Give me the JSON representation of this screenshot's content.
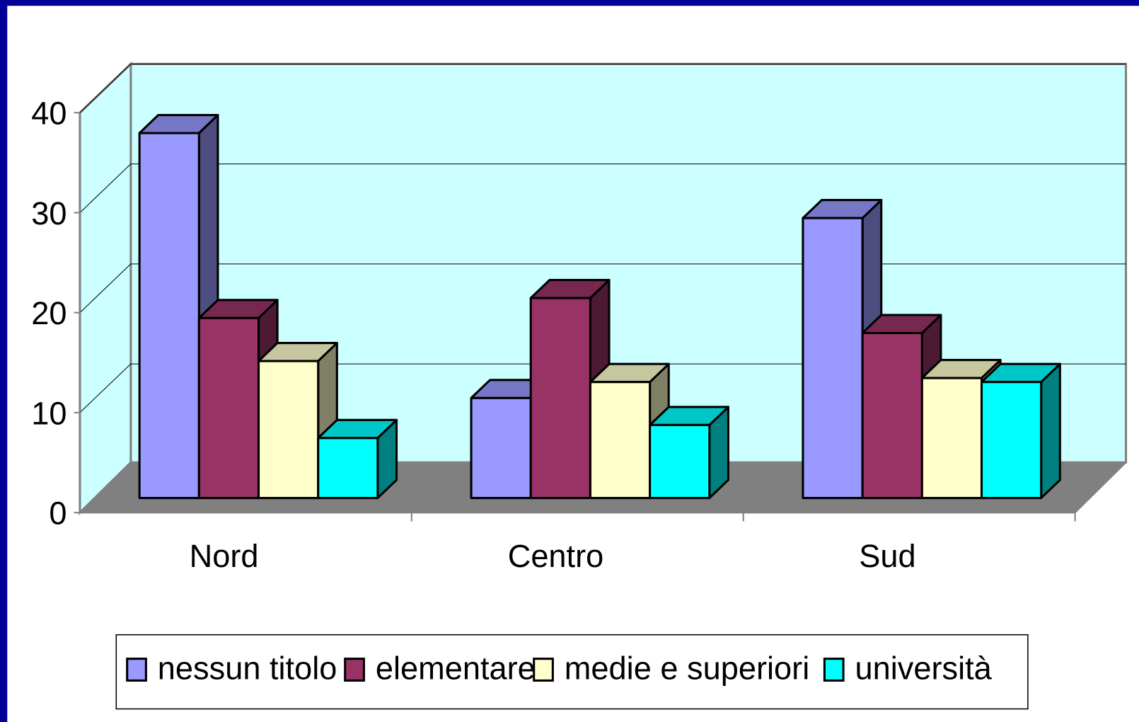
{
  "chart_data": {
    "type": "bar3d",
    "categories": [
      "Nord",
      "Centro",
      "Sud"
    ],
    "series": [
      {
        "name": "nessun titolo",
        "color": "#9999ff",
        "values": [
          36.5,
          10,
          28
        ]
      },
      {
        "name": "elementare",
        "color": "#993366",
        "values": [
          18,
          20,
          16.5
        ]
      },
      {
        "name": "medie e superiori",
        "color": "#ffffcc",
        "values": [
          13.7,
          11.6,
          12
        ]
      },
      {
        "name": "università",
        "color": "#00ffff",
        "values": [
          6,
          7.3,
          11.6
        ]
      }
    ],
    "ylim": [
      0,
      40
    ],
    "yticks": [
      0,
      10,
      20,
      30,
      40
    ],
    "grid": true,
    "legend": "bottom"
  }
}
